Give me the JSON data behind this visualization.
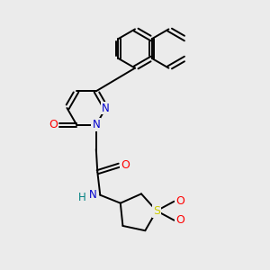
{
  "bg_color": "#ebebeb",
  "atom_colors": {
    "C": "#000000",
    "N": "#0000cc",
    "O": "#ff0000",
    "S": "#cccc00",
    "H": "#008080"
  },
  "bond_color": "#000000",
  "bond_width": 1.4
}
